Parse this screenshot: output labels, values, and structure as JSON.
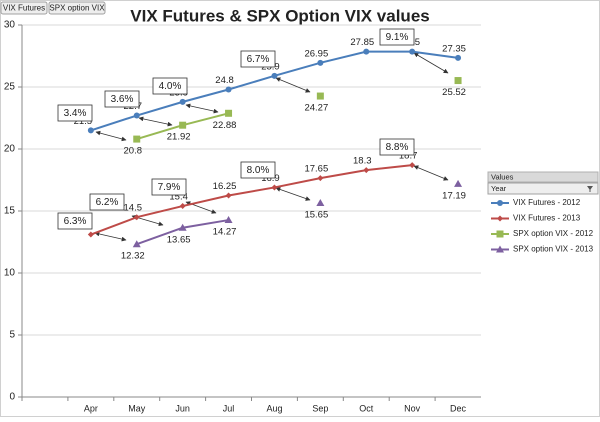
{
  "page_fields": [
    "VIX Futures",
    "SPX option VIX"
  ],
  "legend_header": "Values",
  "legend_field": "Year",
  "chart_data": {
    "type": "line",
    "title": "VIX Futures & SPX Option VIX values",
    "categories": [
      null,
      "Apr",
      "May",
      "Jun",
      "Jul",
      "Aug",
      "Sep",
      "Oct",
      "Nov",
      "Dec"
    ],
    "series": [
      {
        "name": "VIX Futures - 2012",
        "color": "#4a7ebb",
        "marker": "circle",
        "values": [
          null,
          21.5,
          22.7,
          23.8,
          24.8,
          25.9,
          26.95,
          27.85,
          27.85,
          27.35
        ]
      },
      {
        "name": "VIX Futures - 2013",
        "color": "#be4b48",
        "marker": "diamond",
        "values": [
          null,
          13.1,
          14.5,
          15.4,
          16.25,
          16.9,
          17.65,
          18.3,
          18.7,
          null
        ]
      },
      {
        "name": "SPX option VIX - 2012",
        "color": "#98b954",
        "marker": "square",
        "values": [
          null,
          null,
          20.8,
          21.92,
          22.88,
          null,
          24.27,
          null,
          null,
          25.52
        ]
      },
      {
        "name": "SPX option VIX - 2013",
        "color": "#7d60a0",
        "marker": "triangle",
        "values": [
          null,
          null,
          12.32,
          13.65,
          14.27,
          null,
          15.65,
          null,
          null,
          17.19
        ]
      }
    ],
    "ylim": [
      0,
      30
    ],
    "yticks": [
      0,
      5,
      10,
      15,
      20,
      25,
      30
    ],
    "grid": true,
    "data_labels": true,
    "legend": "right",
    "annotations": [
      "3.4%",
      "3.6%",
      "4.0%",
      "6.7%",
      "9.1%",
      "6.3%",
      "6.2%",
      "7.9%",
      "8.0%",
      "8.8%"
    ]
  }
}
